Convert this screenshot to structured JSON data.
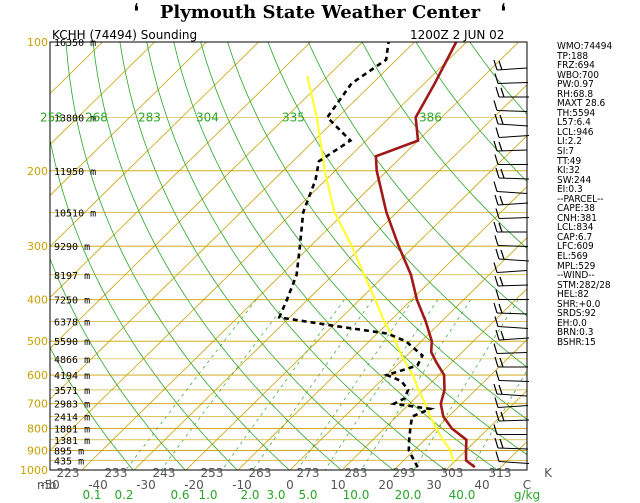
{
  "header": {
    "title": "Plymouth State Weather Center",
    "flag_left": "❛",
    "flag_right": "❛"
  },
  "sounding": {
    "station": "KCHH (74494) Sounding",
    "time": "1200Z  2 JUN 02"
  },
  "pressure_labels": [
    "100",
    "200",
    "300",
    "400",
    "500",
    "600",
    "700",
    "800",
    "900",
    "1000"
  ],
  "pressure_values": [
    100,
    200,
    300,
    400,
    500,
    600,
    700,
    800,
    900,
    1000
  ],
  "height_labels": [
    {
      "p": 100,
      "t": "16350 m"
    },
    {
      "p": 150,
      "t": "13800 m"
    },
    {
      "p": 200,
      "t": "11950 m"
    },
    {
      "p": 250,
      "t": "10510 m"
    },
    {
      "p": 300,
      "t": "9290 m"
    },
    {
      "p": 350,
      "t": "8197 m"
    },
    {
      "p": 400,
      "t": "7250 m"
    },
    {
      "p": 450,
      "t": "6378 m"
    },
    {
      "p": 500,
      "t": "5590 m"
    },
    {
      "p": 550,
      "t": "4866 m"
    },
    {
      "p": 600,
      "t": "4194 m"
    },
    {
      "p": 650,
      "t": "3571 m"
    },
    {
      "p": 700,
      "t": "2983 m"
    },
    {
      "p": 750,
      "t": "2414 m"
    },
    {
      "p": 800,
      "t": "1881 m"
    },
    {
      "p": 850,
      "t": "1381 m"
    },
    {
      "p": 900,
      "t": "895 m"
    },
    {
      "p": 950,
      "t": "435 m"
    }
  ],
  "temp_axis": {
    "mb_label": "mb",
    "labels": [
      "-50",
      "-40",
      "-30",
      "-20",
      "-10",
      "0",
      "10",
      "20",
      "30",
      "40"
    ],
    "unit": "C"
  },
  "kelvin_axis": [
    "223",
    "233",
    "243",
    "253",
    "263",
    "273",
    "283",
    "293",
    "303",
    "313",
    "K"
  ],
  "theta_labels": [
    "253",
    "268",
    "283",
    "304",
    "335",
    "386"
  ],
  "mixing_ratio_labels": [
    "0.1",
    "0.2",
    "0.6",
    "1.0",
    "2.0",
    "3.0",
    "5.0",
    "10.0",
    "20.0",
    "40.0",
    "g/kg"
  ],
  "indices": [
    "WMO:74494",
    "TP:188",
    "FRZ:694",
    "WBO:700",
    "PW:0.97",
    "RH:68.8",
    "MAXT 28.6",
    "TH:5594",
    "L57:6.4",
    "LCL:946",
    "LI:2.2",
    "SI:7",
    "TT:49",
    "KI:32",
    "SW:244",
    "EI:0.3",
    "--PARCEL--",
    "CAPE:38",
    "CNH:381",
    "LCL:834",
    "CAP:6.7",
    "LFC:609",
    "EL:569",
    "MPL:529",
    "--WIND--",
    "STM:282/28",
    "HEL:82",
    "SHR:+0.0",
    "SRDS:92",
    "EH:0.0",
    "BRN:0.3",
    "BSHR:15"
  ],
  "colors": {
    "isobar": "#c8a000",
    "isotherm": "#c8a000",
    "dry_adiabat": "#2aa52a",
    "mixing_ratio": "#2aa52a",
    "temperature": "#a01818",
    "dewpoint": "#000000",
    "parcel": "#ffff33"
  },
  "chart_data": {
    "type": "line",
    "xlabel": "C",
    "ylabel": "mb",
    "ylim": [
      1000,
      100
    ],
    "xlim": [
      -50,
      50
    ],
    "series": [],
    "profiles": {
      "temperature": [
        [
          985,
          25
        ],
        [
          950,
          22
        ],
        [
          900,
          20
        ],
        [
          850,
          18
        ],
        [
          800,
          13
        ],
        [
          750,
          9
        ],
        [
          700,
          6
        ],
        [
          650,
          4
        ],
        [
          600,
          1
        ],
        [
          560,
          -3
        ],
        [
          530,
          -6
        ],
        [
          500,
          -8
        ],
        [
          450,
          -13
        ],
        [
          400,
          -19
        ],
        [
          350,
          -25
        ],
        [
          300,
          -33
        ],
        [
          250,
          -42
        ],
        [
          200,
          -52
        ],
        [
          185,
          -55
        ],
        [
          170,
          -50
        ],
        [
          150,
          -55
        ],
        [
          125,
          -58
        ],
        [
          100,
          -62
        ]
      ],
      "dewpoint": [
        [
          985,
          14
        ],
        [
          950,
          12
        ],
        [
          900,
          9
        ],
        [
          850,
          7
        ],
        [
          800,
          5
        ],
        [
          750,
          3
        ],
        [
          720,
          5
        ],
        [
          700,
          -3
        ],
        [
          680,
          -2
        ],
        [
          650,
          -3
        ],
        [
          620,
          -6
        ],
        [
          600,
          -10
        ],
        [
          570,
          -6
        ],
        [
          540,
          -7
        ],
        [
          500,
          -13
        ],
        [
          480,
          -18
        ],
        [
          460,
          -30
        ],
        [
          440,
          -42
        ],
        [
          400,
          -44
        ],
        [
          350,
          -47
        ],
        [
          300,
          -52
        ],
        [
          250,
          -58
        ],
        [
          210,
          -62
        ],
        [
          190,
          -65
        ],
        [
          170,
          -63
        ],
        [
          150,
          -72
        ],
        [
          125,
          -74
        ],
        [
          110,
          -72
        ],
        [
          100,
          -75
        ]
      ],
      "parcel": [
        [
          960,
          20
        ],
        [
          900,
          17
        ],
        [
          850,
          13.5
        ],
        [
          800,
          10
        ],
        [
          750,
          6.5
        ],
        [
          700,
          3
        ],
        [
          650,
          -1
        ],
        [
          600,
          -5
        ],
        [
          550,
          -10
        ],
        [
          500,
          -15
        ],
        [
          450,
          -21
        ],
        [
          400,
          -27
        ],
        [
          350,
          -34
        ],
        [
          300,
          -42
        ],
        [
          250,
          -52
        ],
        [
          200,
          -62
        ],
        [
          150,
          -74
        ],
        [
          120,
          -84
        ]
      ]
    }
  }
}
